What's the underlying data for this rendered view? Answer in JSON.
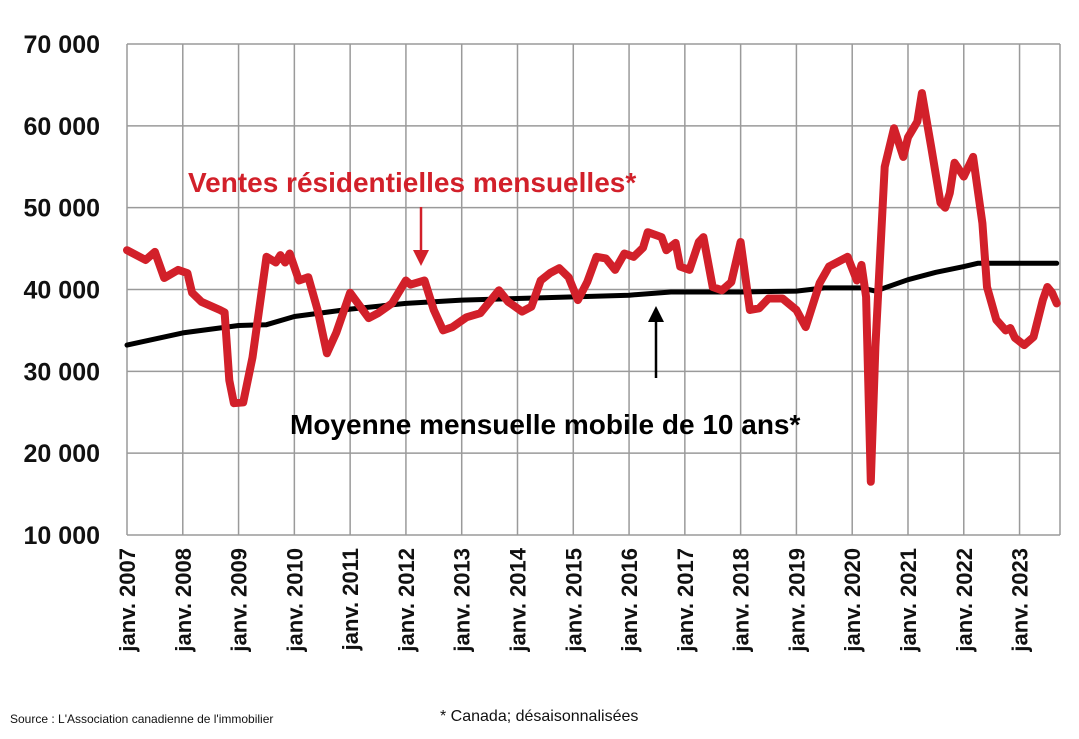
{
  "chart_data": {
    "type": "line",
    "title": "",
    "xlabel": "",
    "ylabel": "",
    "ylim": [
      10000,
      70000
    ],
    "yticks": [
      10000,
      20000,
      30000,
      40000,
      50000,
      60000,
      70000
    ],
    "ytick_labels": [
      "10 000",
      "20 000",
      "30 000",
      "40 000",
      "50 000",
      "60 000",
      "70 000"
    ],
    "xlim": [
      "2007-01",
      "2023-09"
    ],
    "xticks": [
      "2007-01",
      "2008-01",
      "2009-01",
      "2010-01",
      "2011-01",
      "2012-01",
      "2013-01",
      "2014-01",
      "2015-01",
      "2016-01",
      "2017-01",
      "2018-01",
      "2019-01",
      "2020-01",
      "2021-01",
      "2022-01",
      "2023-01"
    ],
    "xtick_labels": [
      "janv. 2007",
      "janv. 2008",
      "janv. 2009",
      "janv. 2010",
      "janv. 2011",
      "janv. 2012",
      "janv. 2013",
      "janv. 2014",
      "janv. 2015",
      "janv. 2016",
      "janv. 2017",
      "janv. 2018",
      "janv. 2019",
      "janv. 2020",
      "janv. 2021",
      "janv. 2022",
      "janv. 2023"
    ],
    "grid": true,
    "series": [
      {
        "name": "Ventes résidentielles mensuelles*",
        "color": "#d2202a",
        "points": [
          [
            "2007-01",
            44800
          ],
          [
            "2007-05",
            43600
          ],
          [
            "2007-07",
            44600
          ],
          [
            "2007-09",
            41400
          ],
          [
            "2007-12",
            42400
          ],
          [
            "2008-02",
            42000
          ],
          [
            "2008-03",
            39600
          ],
          [
            "2008-05",
            38500
          ],
          [
            "2008-09",
            37500
          ],
          [
            "2008-10",
            37200
          ],
          [
            "2008-11",
            28900
          ],
          [
            "2008-12",
            26100
          ],
          [
            "2009-02",
            26200
          ],
          [
            "2009-04",
            31700
          ],
          [
            "2009-07",
            44000
          ],
          [
            "2009-09",
            43300
          ],
          [
            "2009-10",
            44200
          ],
          [
            "2009-11",
            43300
          ],
          [
            "2009-12",
            44400
          ],
          [
            "2010-02",
            41100
          ],
          [
            "2010-04",
            41500
          ],
          [
            "2010-06",
            37500
          ],
          [
            "2010-08",
            32200
          ],
          [
            "2010-10",
            34700
          ],
          [
            "2011-01",
            39600
          ],
          [
            "2011-05",
            36500
          ],
          [
            "2011-07",
            37100
          ],
          [
            "2011-10",
            38300
          ],
          [
            "2012-01",
            41100
          ],
          [
            "2012-02",
            40600
          ],
          [
            "2012-05",
            41100
          ],
          [
            "2012-07",
            37500
          ],
          [
            "2012-09",
            35000
          ],
          [
            "2012-11",
            35400
          ],
          [
            "2013-02",
            36600
          ],
          [
            "2013-05",
            37100
          ],
          [
            "2013-09",
            39900
          ],
          [
            "2013-11",
            38500
          ],
          [
            "2014-02",
            37300
          ],
          [
            "2014-04",
            37900
          ],
          [
            "2014-06",
            41100
          ],
          [
            "2014-08",
            42000
          ],
          [
            "2014-10",
            42600
          ],
          [
            "2014-12",
            41500
          ],
          [
            "2015-02",
            38700
          ],
          [
            "2015-04",
            40900
          ],
          [
            "2015-06",
            44000
          ],
          [
            "2015-08",
            43800
          ],
          [
            "2015-10",
            42400
          ],
          [
            "2015-12",
            44400
          ],
          [
            "2016-02",
            44000
          ],
          [
            "2016-04",
            45100
          ],
          [
            "2016-05",
            47000
          ],
          [
            "2016-08",
            46400
          ],
          [
            "2016-09",
            44800
          ],
          [
            "2016-11",
            45700
          ],
          [
            "2016-12",
            42800
          ],
          [
            "2017-02",
            42400
          ],
          [
            "2017-04",
            45800
          ],
          [
            "2017-05",
            46400
          ],
          [
            "2017-07",
            40300
          ],
          [
            "2017-09",
            39900
          ],
          [
            "2017-11",
            40900
          ],
          [
            "2018-01",
            45800
          ],
          [
            "2018-03",
            37500
          ],
          [
            "2018-05",
            37700
          ],
          [
            "2018-07",
            38900
          ],
          [
            "2018-10",
            38900
          ],
          [
            "2019-01",
            37500
          ],
          [
            "2019-03",
            35400
          ],
          [
            "2019-06",
            40800
          ],
          [
            "2019-08",
            42800
          ],
          [
            "2019-12",
            44000
          ],
          [
            "2020-02",
            41100
          ],
          [
            "2020-03",
            43000
          ],
          [
            "2020-04",
            39100
          ],
          [
            "2020-05",
            16500
          ],
          [
            "2020-06",
            33000
          ],
          [
            "2020-08",
            55000
          ],
          [
            "2020-10",
            59700
          ],
          [
            "2020-12",
            56200
          ],
          [
            "2021-01",
            58600
          ],
          [
            "2021-03",
            60500
          ],
          [
            "2021-04",
            64000
          ],
          [
            "2021-06",
            57400
          ],
          [
            "2021-08",
            50600
          ],
          [
            "2021-09",
            50000
          ],
          [
            "2021-10",
            51800
          ],
          [
            "2021-11",
            55500
          ],
          [
            "2022-01",
            53800
          ],
          [
            "2022-03",
            56200
          ],
          [
            "2022-05",
            48100
          ],
          [
            "2022-06",
            40300
          ],
          [
            "2022-08",
            36300
          ],
          [
            "2022-10",
            35000
          ],
          [
            "2022-11",
            35300
          ],
          [
            "2022-12",
            34100
          ],
          [
            "2023-02",
            33200
          ],
          [
            "2023-04",
            34200
          ],
          [
            "2023-06",
            38700
          ],
          [
            "2023-07",
            40300
          ],
          [
            "2023-08",
            39600
          ],
          [
            "2023-09",
            38300
          ]
        ]
      },
      {
        "name": "Moyenne mensuelle mobile de 10 ans*",
        "color": "#000000",
        "points": [
          [
            "2007-01",
            33200
          ],
          [
            "2008-01",
            34700
          ],
          [
            "2009-01",
            35600
          ],
          [
            "2009-07",
            35700
          ],
          [
            "2010-01",
            36700
          ],
          [
            "2011-01",
            37600
          ],
          [
            "2012-01",
            38300
          ],
          [
            "2013-01",
            38700
          ],
          [
            "2014-01",
            38900
          ],
          [
            "2015-01",
            39100
          ],
          [
            "2016-01",
            39300
          ],
          [
            "2016-10",
            39700
          ],
          [
            "2018-01",
            39700
          ],
          [
            "2019-01",
            39800
          ],
          [
            "2019-07",
            40200
          ],
          [
            "2020-03",
            40200
          ],
          [
            "2020-06",
            39800
          ],
          [
            "2021-01",
            41200
          ],
          [
            "2021-07",
            42100
          ],
          [
            "2022-01",
            42800
          ],
          [
            "2022-04",
            43200
          ],
          [
            "2023-01",
            43200
          ],
          [
            "2023-09",
            43200
          ]
        ]
      }
    ],
    "annotations": {
      "sales_label": "Ventes résidentielles mensuelles*",
      "average_label": "Moyenne mensuelle mobile de 10 ans*"
    }
  },
  "source": "Source : L'Association canadienne de l'immobilier",
  "footnote": "* Canada; désaisonnalisées"
}
